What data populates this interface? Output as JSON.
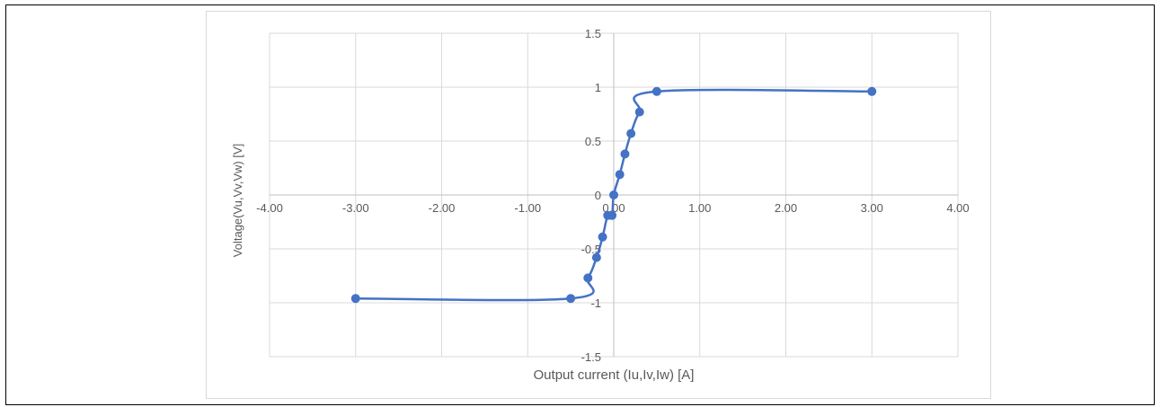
{
  "chart_data": {
    "type": "scatter",
    "title": "",
    "xlabel": "Output current (Iu,Iv,Iw) [A]",
    "ylabel": "Voltage(Vu,Vv,Vw) [V]",
    "xlim": [
      -4,
      4
    ],
    "ylim": [
      -1.5,
      1.5
    ],
    "grid": true,
    "legend": "none",
    "x_ticks": [
      -4,
      -3,
      -2,
      -1,
      0,
      1,
      2,
      3,
      4
    ],
    "x_tick_labels": [
      "-4.00",
      "-3.00",
      "-2.00",
      "-1.00",
      "0.00",
      "1.00",
      "2.00",
      "3.00",
      "4.00"
    ],
    "y_ticks": [
      -1.5,
      -1,
      -0.5,
      0,
      0.5,
      1,
      1.5
    ],
    "y_tick_labels": [
      "-1.5",
      "-1",
      "-0.5",
      "0",
      "0.5",
      "1",
      "1.5"
    ],
    "smooth_line": true,
    "series": [
      {
        "color": "#4472c4",
        "x": [
          -3.0,
          -0.5,
          -0.3,
          -0.2,
          -0.13,
          -0.07,
          -0.02,
          0.0,
          0.07,
          0.13,
          0.2,
          0.3,
          0.5,
          3.0
        ],
        "y": [
          -0.96,
          -0.96,
          -0.77,
          -0.58,
          -0.39,
          -0.19,
          -0.19,
          0.0,
          0.19,
          0.38,
          0.57,
          0.77,
          0.96,
          0.96
        ]
      }
    ]
  }
}
